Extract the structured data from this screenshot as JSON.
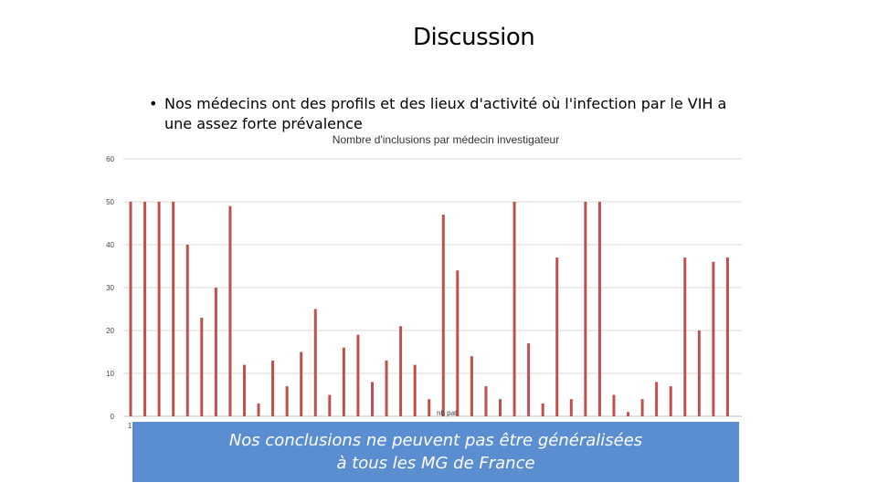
{
  "slide": {
    "title": "Discussion",
    "bullet": "Nos médecins ont des profils et des lieux d'activité où l'infection par le VIH a une assez forte prévalence",
    "banner_line1": "Nos conclusions ne peuvent pas être généralisées",
    "banner_line2": "à tous les MG de France"
  },
  "colors": {
    "bar": "#c0504d",
    "banner": "#5b8ed1",
    "grid": "#d9d9d9"
  },
  "chart_data": {
    "type": "bar",
    "title": "Nombre d'inclusions par médecin investigateur",
    "ylim": [
      0,
      60
    ],
    "yticks": [
      0,
      10,
      20,
      30,
      40,
      50,
      60
    ],
    "grid": true,
    "first_category_label": "1",
    "legend": "nb pat",
    "values": [
      50,
      50,
      50,
      50,
      40,
      23,
      30,
      49,
      12,
      3,
      13,
      7,
      15,
      25,
      5,
      16,
      19,
      8,
      13,
      21,
      12,
      4,
      47,
      34,
      14,
      7,
      4,
      50,
      17,
      3,
      37,
      4,
      50,
      50,
      5,
      1,
      4,
      8,
      7,
      37,
      20,
      36,
      37
    ]
  }
}
